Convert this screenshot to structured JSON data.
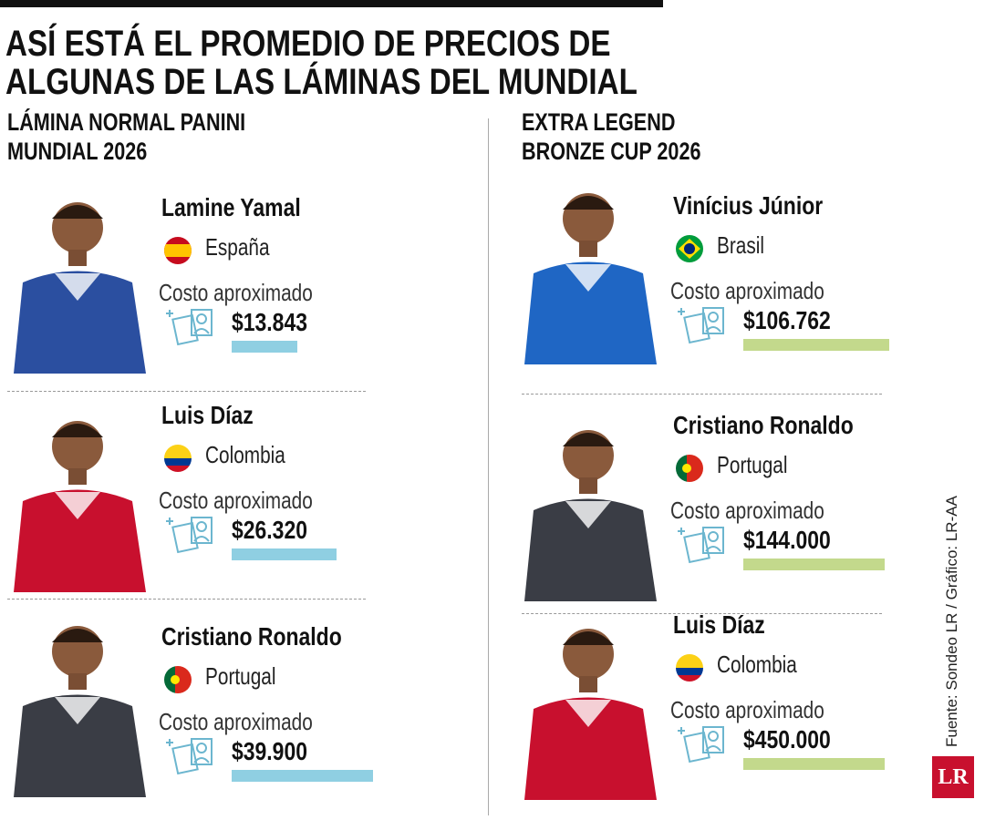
{
  "header": {
    "title_lines": [
      "ASÍ ESTÁ EL PROMEDIO DE PRECIOS DE",
      "ALGUNAS DE LAS LÁMINAS DEL MUNDIAL"
    ]
  },
  "columns": [
    {
      "title_lines": [
        "LÁMINA NORMAL PANINI",
        "MUNDIAL 2026"
      ],
      "items": [
        {
          "name": "Lamine Yamal",
          "country": "España",
          "label": "Costo aproximado",
          "price": "$13.843"
        },
        {
          "name": "Luis Díaz",
          "country": "Colombia",
          "label": "Costo aproximado",
          "price": "$26.320"
        },
        {
          "name": "Cristiano Ronaldo",
          "country": "Portugal",
          "label": "Costo aproximado",
          "price": "$39.900"
        }
      ]
    },
    {
      "title_lines": [
        "EXTRA LEGEND",
        "BRONZE CUP 2026"
      ],
      "items": [
        {
          "name": "Vinícius Júnior",
          "country": "Brasil",
          "label": "Costo aproximado",
          "price": "$106.762"
        },
        {
          "name": "Cristiano Ronaldo",
          "country": "Portugal",
          "label": "Costo aproximado",
          "price": "$144.000"
        },
        {
          "name": "Luis Díaz",
          "country": "Colombia",
          "label": "Costo aproximado",
          "price": "$450.000"
        }
      ]
    }
  ],
  "footer": {
    "source": "Fuente: Sondeo LR / Gráfico: LR-AA",
    "logo": "LR"
  }
}
